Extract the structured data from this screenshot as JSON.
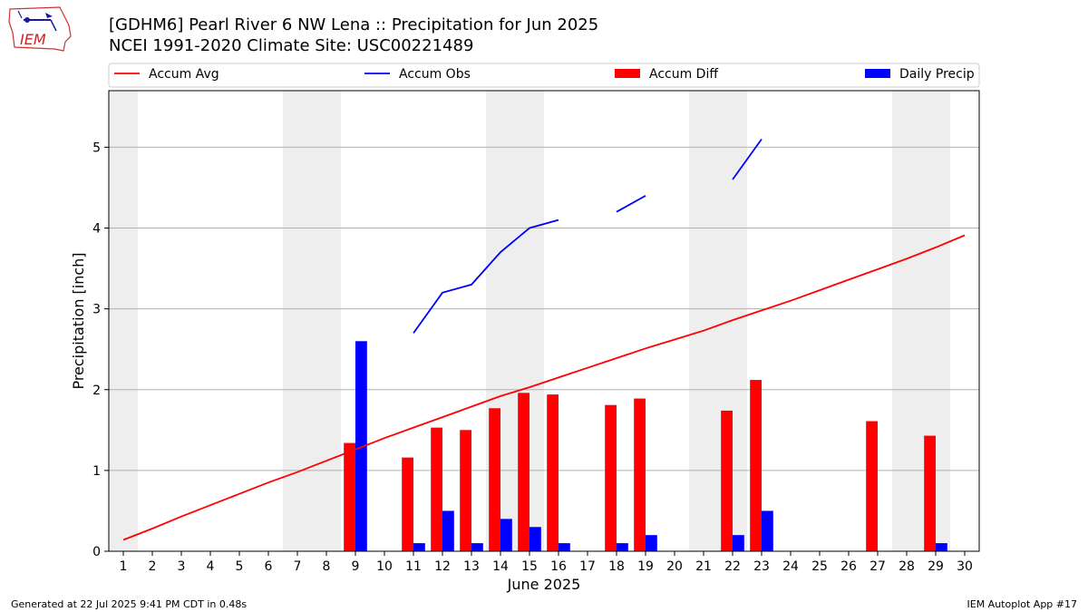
{
  "title": {
    "line1": "[GDHM6] Pearl River 6 NW Lena :: Precipitation for Jun 2025",
    "line2": "NCEI 1991-2020 Climate Site: USC00221489"
  },
  "logo": {
    "text": "IEM"
  },
  "footer": {
    "left": "Generated at 22 Jul 2025 9:41 PM CDT in 0.48s",
    "right": "IEM Autoplot App #17"
  },
  "colors": {
    "avg": "#ff0000",
    "obs": "#0000ff",
    "diff": "#ff0000",
    "daily": "#0000ff",
    "weekend": "#eeeeee",
    "grid": "#b0b0b0"
  },
  "chart_data": {
    "type": "bar",
    "xlabel": "June 2025",
    "ylabel": "Precipitation [inch]",
    "xlim": [
      0.5,
      30.5
    ],
    "ylim": [
      0,
      5.7
    ],
    "yticks": [
      0,
      1,
      2,
      3,
      4,
      5
    ],
    "x": [
      1,
      2,
      3,
      4,
      5,
      6,
      7,
      8,
      9,
      10,
      11,
      12,
      13,
      14,
      15,
      16,
      17,
      18,
      19,
      20,
      21,
      22,
      23,
      24,
      25,
      26,
      27,
      28,
      29,
      30
    ],
    "weekend_days": [
      1,
      7,
      8,
      14,
      15,
      21,
      22,
      28,
      29
    ],
    "grid": "y",
    "legend_position": "top",
    "legend": [
      "Accum Avg",
      "Accum Obs",
      "Accum Diff",
      "Daily Precip"
    ],
    "series": [
      {
        "name": "Accum Avg",
        "type": "line",
        "values": [
          0.14,
          0.28,
          0.43,
          0.57,
          0.71,
          0.85,
          0.98,
          1.12,
          1.26,
          1.4,
          1.53,
          1.66,
          1.79,
          1.92,
          2.03,
          2.15,
          2.27,
          2.39,
          2.51,
          2.62,
          2.73,
          2.86,
          2.98,
          3.1,
          3.23,
          3.36,
          3.49,
          3.62,
          3.76,
          3.91
        ]
      },
      {
        "name": "Accum Obs",
        "type": "line",
        "values": [
          null,
          null,
          null,
          null,
          null,
          null,
          null,
          null,
          null,
          null,
          2.7,
          3.2,
          3.3,
          3.7,
          4.0,
          4.1,
          null,
          4.2,
          4.4,
          null,
          null,
          4.6,
          5.1,
          null,
          null,
          null,
          null,
          null,
          null,
          null
        ]
      },
      {
        "name": "Accum Diff",
        "type": "bar",
        "values": [
          null,
          null,
          null,
          null,
          null,
          null,
          null,
          null,
          1.34,
          null,
          1.16,
          1.53,
          1.5,
          1.77,
          1.96,
          1.94,
          null,
          1.81,
          1.89,
          null,
          null,
          1.74,
          2.12,
          null,
          null,
          null,
          1.61,
          null,
          1.43,
          null
        ]
      },
      {
        "name": "Daily Precip",
        "type": "bar",
        "values": [
          null,
          null,
          null,
          null,
          null,
          null,
          null,
          null,
          2.6,
          null,
          0.1,
          0.5,
          0.1,
          0.4,
          0.3,
          0.1,
          null,
          0.1,
          0.2,
          null,
          null,
          0.2,
          0.5,
          null,
          null,
          null,
          null,
          null,
          0.1,
          null
        ]
      }
    ]
  }
}
